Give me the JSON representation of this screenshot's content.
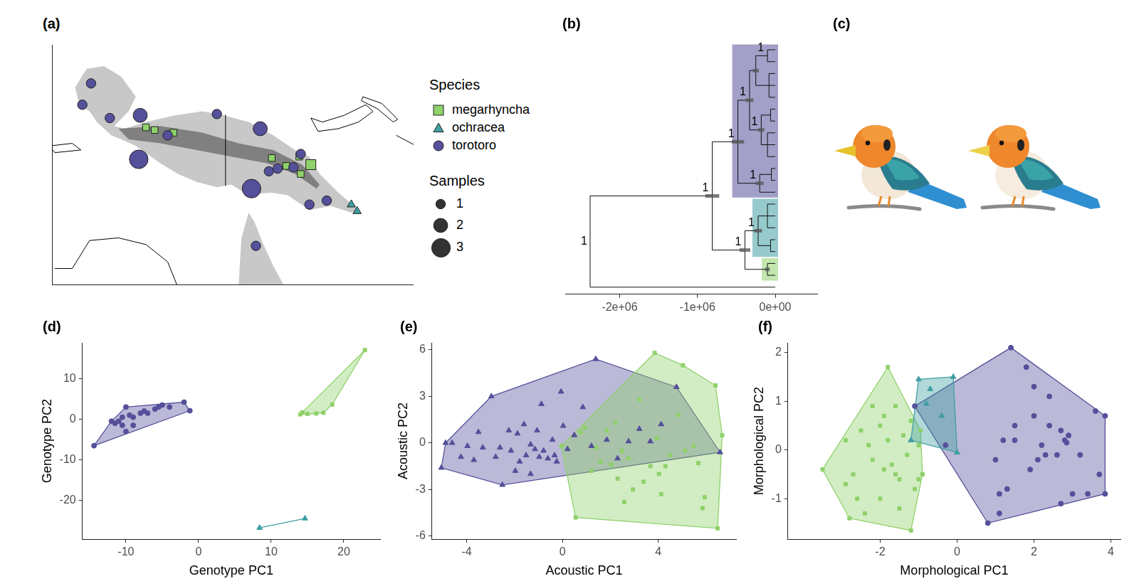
{
  "chart_data": [
    {
      "type": "map",
      "panel": "(a)",
      "xlim": [
        129,
        154
      ],
      "ylim": [
        -16,
        2
      ],
      "tick_labels": false,
      "legend": "right",
      "legend_title": "Species",
      "size_title": "Samples",
      "sizes": [
        1,
        2,
        3
      ],
      "series": [
        {
          "name": "megarhyncha",
          "color": "#8fd16a",
          "marker": "square",
          "x": [
            135.5,
            136.1,
            137.4,
            144.2,
            145.2,
            146.1,
            146.2,
            146.9
          ],
          "y": [
            -4.2,
            -4.4,
            -4.6,
            -6.5,
            -7.1,
            -6.4,
            -7.7,
            -7.0
          ],
          "samples": [
            1,
            1,
            1,
            1,
            1,
            1,
            1,
            2
          ]
        },
        {
          "name": "ochracea",
          "color": "#3f9ea3",
          "marker": "triangle",
          "x": [
            149.7,
            150.1
          ],
          "y": [
            -10.0,
            -10.5
          ],
          "samples": [
            1,
            1
          ]
        },
        {
          "name": "torotoro",
          "color": "#55509a",
          "marker": "circle",
          "x": [
            131.7,
            131.1,
            135.1,
            133.0,
            135.0,
            137.0,
            140.4,
            143.4,
            142.8,
            144.0,
            144.6,
            145.7,
            146.2,
            146.8,
            148.0,
            143.1
          ],
          "y": [
            -0.9,
            -2.5,
            -3.3,
            -3.5,
            -6.6,
            -4.8,
            -3.2,
            -4.3,
            -8.8,
            -7.5,
            -7.3,
            -7.2,
            -6.2,
            -10.0,
            -9.7,
            -13.1
          ],
          "samples": [
            1,
            1,
            2,
            1,
            3,
            1,
            1,
            2,
            3,
            1,
            1,
            1,
            1,
            1,
            1,
            1
          ]
        }
      ]
    },
    {
      "type": "tree",
      "panel": "(b)",
      "xlim": [
        -2700000,
        540000
      ],
      "xticks": [
        {
          "value": -2000000,
          "label": "-2e+06"
        },
        {
          "value": -1000000,
          "label": "-1e+06"
        },
        {
          "value": 0,
          "label": "0e+00"
        }
      ],
      "tree": {
        "age": -2380000,
        "support": 1,
        "children": [
          {
            "age": -810000,
            "support": 1,
            "hpd": [
              -900000,
              -720000
            ],
            "children": [
              {
                "age": -480000,
                "support": 1,
                "hpd": [
                  -560000,
                  -400000
                ],
                "color": "#55509a",
                "children": [
                  {
                    "age": -330000,
                    "support": 1,
                    "hpd": [
                      -380000,
                      -280000
                    ],
                    "children": [
                      {
                        "age": -250000,
                        "hpd": [
                          -290000,
                          -210000
                        ],
                        "children": [
                          {
                            "age": -100000,
                            "support": 1,
                            "children": [
                              {
                                "age": 0
                              },
                              {
                                "age": 0
                              }
                            ]
                          },
                          {
                            "age": -80000,
                            "children": [
                              {
                                "age": 0
                              },
                              {
                                "age": 0
                              },
                              {
                                "age": 0
                              }
                            ]
                          }
                        ]
                      },
                      {
                        "age": -180000,
                        "support": 1,
                        "hpd": [
                          -220000,
                          -140000
                        ],
                        "children": [
                          {
                            "age": -60000,
                            "children": [
                              {
                                "age": 0
                              },
                              {
                                "age": 0
                              }
                            ]
                          },
                          {
                            "age": -100000,
                            "children": [
                              {
                                "age": 0
                              },
                              {
                                "age": 0
                              },
                              {
                                "age": 0
                              }
                            ]
                          }
                        ]
                      }
                    ]
                  },
                  {
                    "age": -200000,
                    "support": 1,
                    "hpd": [
                      -250000,
                      -150000
                    ],
                    "children": [
                      {
                        "age": -50000,
                        "children": [
                          {
                            "age": 0
                          },
                          {
                            "age": 0
                          }
                        ]
                      },
                      {
                        "age": 0
                      }
                    ]
                  }
                ]
              },
              {
                "age": -390000,
                "support": 1,
                "hpd": [
                  -460000,
                  -320000
                ],
                "children": [
                  {
                    "age": -220000,
                    "support": 1,
                    "hpd": [
                      -270000,
                      -170000
                    ],
                    "color": "#3f9ea3",
                    "children": [
                      {
                        "age": -100000,
                        "children": [
                          {
                            "age": 0
                          },
                          {
                            "age": 0
                          },
                          {
                            "age": 0
                          }
                        ]
                      },
                      {
                        "age": -60000,
                        "children": [
                          {
                            "age": 0
                          },
                          {
                            "age": 0
                          }
                        ]
                      }
                    ]
                  },
                  {
                    "age": -100000,
                    "hpd": [
                      -130000,
                      -70000
                    ],
                    "color": "#8fd16a",
                    "children": [
                      {
                        "age": 0
                      },
                      {
                        "age": 0
                      }
                    ]
                  }
                ]
              }
            ]
          },
          {
            "age": 0
          }
        ]
      }
    },
    {
      "type": "illustration",
      "panel": "(c)"
    },
    {
      "type": "scatter",
      "panel": "(d)",
      "x_label": "Genotype PC1",
      "y_label": "Genotype PC2",
      "xlim": [
        -16,
        25
      ],
      "ylim": [
        -29.5,
        18.8
      ],
      "xticks": [
        -10,
        0,
        10,
        20
      ],
      "yticks": [
        -20,
        -10,
        0,
        10
      ],
      "series": [
        {
          "name": "torotoro",
          "color": "#55509a",
          "marker": "circle",
          "x": [
            -14.4,
            -12,
            -11.5,
            -11,
            -10.5,
            -10,
            -10.5,
            -10,
            -9.5,
            -9,
            -8,
            -7.5,
            -7,
            -6,
            -5.5,
            -5,
            -4,
            -2,
            -1.2,
            -9
          ],
          "y": [
            -6.5,
            -0.5,
            -1,
            -0.5,
            0.5,
            3,
            -1.5,
            -3,
            1,
            0.5,
            1.5,
            2,
            1.5,
            2.5,
            3,
            3.5,
            3,
            4.2,
            2.1,
            -1.5
          ]
        },
        {
          "name": "megarhyncha",
          "color": "#8fd16a",
          "marker": "square",
          "x": [
            14,
            14.3,
            15,
            16.2,
            17.2,
            18.4,
            22.9
          ],
          "y": [
            1.2,
            1.7,
            1.3,
            1.4,
            1.6,
            3.6,
            17
          ]
        },
        {
          "name": "ochracea",
          "color": "#3f9ea3",
          "marker": "triangle",
          "x": [
            8.4,
            14.65
          ],
          "y": [
            -26.7,
            -24.4
          ]
        }
      ]
    },
    {
      "type": "scatter",
      "panel": "(e)",
      "x_label": "Acoustic PC1",
      "y_label": "Acoustic PC2",
      "xlim": [
        -5.45,
        7.25
      ],
      "ylim": [
        -6.2,
        6.45
      ],
      "xticks": [
        -4,
        0,
        4
      ],
      "yticks": [
        -6,
        -3,
        0,
        3,
        6
      ],
      "series": [
        {
          "name": "torotoro",
          "color": "#55509a",
          "marker": "triangle",
          "x": [
            -5.06,
            -4.88,
            -4.61,
            -4.24,
            -3.97,
            -3.7,
            -3.51,
            -3.33,
            -2.97,
            -2.79,
            -2.61,
            -2.51,
            -2.24,
            -2.15,
            -1.97,
            -1.88,
            -1.79,
            -1.61,
            -1.52,
            -1.33,
            -1.33,
            -1.15,
            -1.06,
            -0.97,
            -0.88,
            -0.79,
            -0.61,
            -0.42,
            -0.33,
            -0.24,
            -0.06,
            0.03,
            0.21,
            0.49,
            0.85,
            1.21,
            1.39,
            1.85,
            2.3,
            2.76,
            3.21,
            3.67,
            4.12,
            4.76,
            6.58
          ],
          "y": [
            -1.6,
            0,
            0,
            -0.9,
            -0.2,
            -1.1,
            0.7,
            -0.3,
            3.0,
            -0.9,
            -0.3,
            -2.7,
            0.8,
            -0.5,
            -1.8,
            0.6,
            -1.2,
            1.2,
            -0.8,
            -0.1,
            -2.0,
            -0.4,
            0.8,
            -0.9,
            2.5,
            -0.5,
            -1.0,
            0.2,
            -0.8,
            -1.2,
            3.3,
            1.1,
            -0.4,
            0.5,
            2.3,
            -0.2,
            5.4,
            0.2,
            -1.0,
            0.1,
            0.9,
            0.1,
            1.2,
            3.6,
            -0.6
          ]
        },
        {
          "name": "megarhyncha",
          "color": "#8fd16a",
          "marker": "square",
          "x": [
            -0.05,
            0.55,
            0.76,
            0.94,
            1.21,
            1.39,
            1.58,
            1.85,
            2.03,
            2.21,
            2.3,
            2.48,
            2.76,
            2.94,
            3.21,
            3.39,
            3.67,
            3.85,
            3.94,
            4.12,
            4.3,
            4.48,
            4.85,
            5.03,
            5.12,
            5.48,
            5.67,
            5.94,
            6.39,
            6.48,
            6.67,
            5.85,
            4.03,
            2.58
          ],
          "y": [
            -0.2,
            -4.8,
            0.7,
            1.0,
            -1.8,
            -0.3,
            -1.2,
            0.8,
            -1.4,
            1.3,
            -2.3,
            -0.5,
            -1.0,
            -3.0,
            2.8,
            -2.5,
            -1.5,
            5.8,
            0.3,
            -3.3,
            -1.5,
            -0.8,
            1.8,
            5.0,
            -0.5,
            -0.2,
            -1.3,
            -3.5,
            3.7,
            -5.5,
            0.5,
            -4.2,
            -2.0,
            -3.8
          ]
        }
      ]
    },
    {
      "type": "scatter",
      "panel": "(f)",
      "x_label": "Morphological PC1",
      "y_label": "Morphological PC2",
      "xlim": [
        -4.4,
        4.25
      ],
      "ylim": [
        -1.83,
        2.2
      ],
      "xticks": [
        -2,
        0,
        2,
        4
      ],
      "yticks": [
        -1,
        0,
        1,
        2
      ],
      "series": [
        {
          "name": "torotoro",
          "color": "#55509a",
          "marker": "circle",
          "x": [
            -1.1,
            0.8,
            1.4,
            3.6,
            3.85,
            3.85,
            3.7,
            3.4,
            3.0,
            2.7,
            2.8,
            2.9,
            2.85,
            2.7,
            2.4,
            2.3,
            2.2,
            2.0,
            2.0,
            1.8,
            1.5,
            1.3,
            1.1,
            1.2,
            1.0,
            1.5,
            1.9,
            2.4,
            1.1,
            2.1,
            -0.3,
            3.2,
            2.6
          ],
          "y": [
            0.9,
            -1.5,
            2.1,
            0.8,
            0.7,
            -0.9,
            -0.5,
            -0.9,
            -0.9,
            -1.1,
            0.2,
            0.3,
            0.15,
            0.4,
            0.5,
            -0.1,
            0.1,
            0.7,
            1.3,
            1.7,
            0.5,
            -0.8,
            -0.9,
            0.2,
            -0.2,
            0.2,
            -0.4,
            1.1,
            -1.3,
            -0.2,
            0.1,
            -0.1,
            -0.1
          ]
        },
        {
          "name": "megarhyncha",
          "color": "#8fd16a",
          "marker": "square",
          "x": [
            -3.5,
            -2.9,
            -2.8,
            -2.7,
            -2.5,
            -2.3,
            -2.2,
            -2.0,
            -2.0,
            -1.9,
            -1.8,
            -1.8,
            -1.7,
            -1.6,
            -1.5,
            -1.5,
            -1.4,
            -1.3,
            -1.2,
            -1.2,
            -1.1,
            -1.0,
            -0.9,
            -2.4,
            -2.9,
            -2.6,
            -1.9,
            -1.0,
            -0.95,
            -2.2,
            -1.6
          ],
          "y": [
            -0.4,
            0.2,
            -1.4,
            -0.5,
            0.4,
            0.1,
            -0.2,
            0.5,
            -1.0,
            0.7,
            0.2,
            1.7,
            -0.3,
            0.9,
            -0.6,
            -1.2,
            0.3,
            -0.1,
            -1.65,
            0.6,
            -0.8,
            0.1,
            -0.5,
            -1.3,
            -0.7,
            -1.0,
            -0.4,
            -0.6,
            0.4,
            0.9,
            -0.5
          ]
        },
        {
          "name": "ochracea",
          "color": "#3f9ea3",
          "marker": "triangle",
          "x": [
            -1.2,
            -1.0,
            -0.8,
            -0.7,
            -0.1,
            0,
            -0.4
          ],
          "y": [
            0.2,
            1.45,
            0.95,
            1.25,
            1.5,
            -0.05,
            0.7
          ]
        }
      ]
    }
  ]
}
